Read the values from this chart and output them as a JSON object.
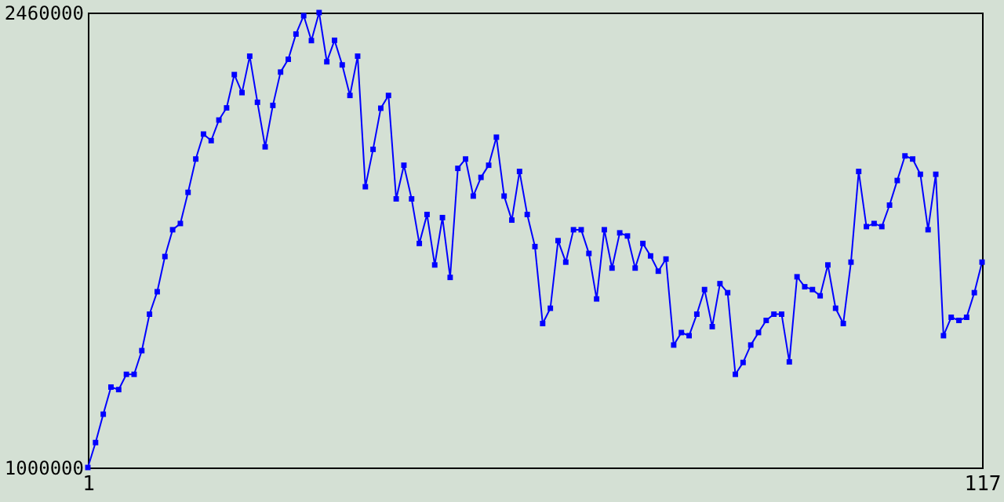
{
  "chart_data": {
    "type": "line",
    "x": [
      1,
      2,
      3,
      4,
      5,
      6,
      7,
      8,
      9,
      10,
      11,
      12,
      13,
      14,
      15,
      16,
      17,
      18,
      19,
      20,
      21,
      22,
      23,
      24,
      25,
      26,
      27,
      28,
      29,
      30,
      31,
      32,
      33,
      34,
      35,
      36,
      37,
      38,
      39,
      40,
      41,
      42,
      43,
      44,
      45,
      46,
      47,
      48,
      49,
      50,
      51,
      52,
      53,
      54,
      55,
      56,
      57,
      58,
      59,
      60,
      61,
      62,
      63,
      64,
      65,
      66,
      67,
      68,
      69,
      70,
      71,
      72,
      73,
      74,
      75,
      76,
      77,
      78,
      79,
      80,
      81,
      82,
      83,
      84,
      85,
      86,
      87,
      88,
      89,
      90,
      91,
      92,
      93,
      94,
      95,
      96,
      97,
      98,
      99,
      100,
      101,
      102,
      103,
      104,
      105,
      106,
      107,
      108,
      109,
      110,
      111,
      112,
      113,
      114,
      115,
      116,
      117
    ],
    "series": [
      {
        "color": "#0000ff",
        "values": [
          1000000,
          1080000,
          1171000,
          1258000,
          1250000,
          1299000,
          1299000,
          1375000,
          1492000,
          1564000,
          1677000,
          1763000,
          1783000,
          1883000,
          1990000,
          2070000,
          2049000,
          2115000,
          2154000,
          2261000,
          2203000,
          2320000,
          2172000,
          2029000,
          2162000,
          2269000,
          2310000,
          2391000,
          2450000,
          2370000,
          2460000,
          2302000,
          2371000,
          2292000,
          2194000,
          2320000,
          1901000,
          2021000,
          2153000,
          2194000,
          1862000,
          1970000,
          1862000,
          1719000,
          1812000,
          1650000,
          1802000,
          1610000,
          1960000,
          1990000,
          1871000,
          1931000,
          1970000,
          2060000,
          1871000,
          1794000,
          1950000,
          1812000,
          1709000,
          1462000,
          1511000,
          1728000,
          1659000,
          1763000,
          1763000,
          1687000,
          1541000,
          1763000,
          1640000,
          1753000,
          1743000,
          1640000,
          1719000,
          1679000,
          1630000,
          1669000,
          1393000,
          1433000,
          1423000,
          1492000,
          1571000,
          1452000,
          1590000,
          1561000,
          1299000,
          1337000,
          1393000,
          1433000,
          1472000,
          1492000,
          1492000,
          1339000,
          1612000,
          1580000,
          1571000,
          1551000,
          1650000,
          1511000,
          1462000,
          1659000,
          1950000,
          1773000,
          1783000,
          1773000,
          1842000,
          1921000,
          2000000,
          1990000,
          1941000,
          1763000,
          1941000,
          1423000,
          1482000,
          1472000,
          1482000,
          1561000,
          1659000
        ]
      }
    ],
    "xlim": [
      1,
      117
    ],
    "ylim": [
      1000000,
      2460000
    ],
    "xticks": [
      1,
      117
    ],
    "yticks": [
      1000000,
      2460000
    ],
    "marker": "square",
    "line_style": "solid",
    "grid": false
  }
}
